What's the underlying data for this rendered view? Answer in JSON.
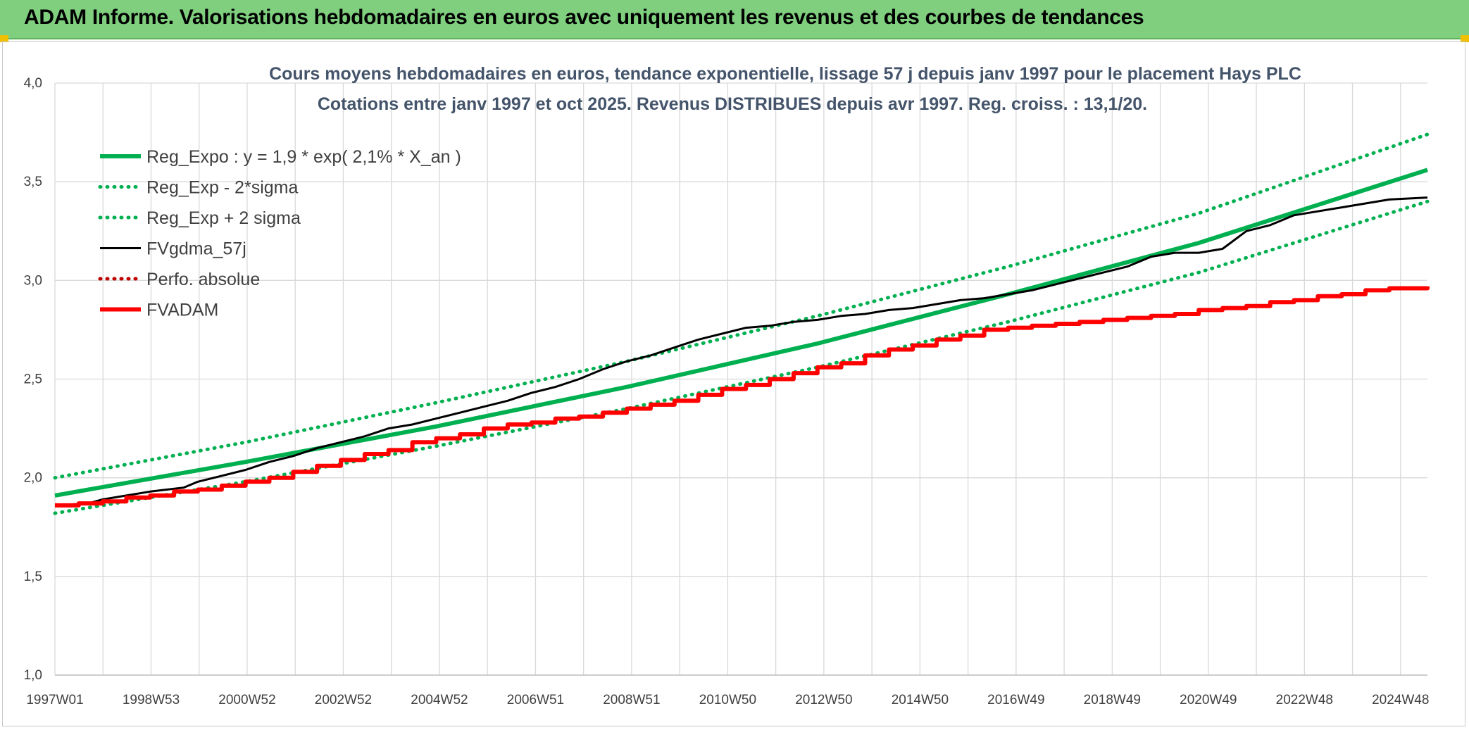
{
  "banner": {
    "title": "ADAM Informe. Valorisations hebdomadaires en euros avec uniquement les revenus et des courbes de tendances"
  },
  "colors": {
    "banner": "#7fcf7f",
    "reg": "#00b050",
    "fvgdma": "#000000",
    "fvadam": "#ff0000",
    "perfo": "#c00000"
  },
  "chart_data": {
    "type": "line",
    "title": "Cours moyens hebdomadaires en euros, tendance exponentielle, lissage 57 j depuis janv 1997 pour le placement Hays PLC",
    "subtitle": "Cotations entre janv 1997 et oct 2025. Revenus DISTRIBUES depuis avr 1997. Reg. croiss. : 13,1/20.",
    "ylim": [
      1.0,
      4.0
    ],
    "xlim": [
      1997.0,
      2025.8
    ],
    "y_ticks": [
      "1,0",
      "1,5",
      "2,0",
      "2,5",
      "3,0",
      "3,5",
      "4,0"
    ],
    "x_tick_labels": [
      "1997W01",
      "1998W53",
      "2000W52",
      "2002W52",
      "2004W52",
      "2006W51",
      "2008W51",
      "2010W50",
      "2012W50",
      "2014W50",
      "2016W49",
      "2018W49",
      "2020W49",
      "2022W48",
      "2024W48"
    ],
    "grid": true,
    "legend_position": "top-left",
    "series": [
      {
        "name": "Reg_Expo : y = 1,9 * exp( 2,1% *  X_an )",
        "style": "solid-thick",
        "color": "#00b050",
        "x": [
          1997.0,
          2001.0,
          2005.0,
          2009.0,
          2013.0,
          2017.0,
          2021.0,
          2025.8
        ],
        "y": [
          1.91,
          2.08,
          2.26,
          2.46,
          2.68,
          2.93,
          3.19,
          3.56
        ]
      },
      {
        "name": "Reg_Exp - 2*sigma",
        "style": "dotted",
        "color": "#00b050",
        "x": [
          1997.0,
          2001.0,
          2005.0,
          2009.0,
          2013.0,
          2017.0,
          2021.0,
          2025.8
        ],
        "y": [
          1.82,
          1.98,
          2.16,
          2.35,
          2.56,
          2.79,
          3.04,
          3.4
        ]
      },
      {
        "name": "Reg_Exp + 2 sigma",
        "style": "dotted",
        "color": "#00b050",
        "x": [
          1997.0,
          2001.0,
          2005.0,
          2009.0,
          2013.0,
          2017.0,
          2021.0,
          2025.8
        ],
        "y": [
          2.0,
          2.18,
          2.38,
          2.59,
          2.82,
          3.07,
          3.34,
          3.74
        ]
      },
      {
        "name": "FVgdma_57j",
        "style": "solid-thin",
        "color": "#000000",
        "x": [
          1997.0,
          1997.7,
          1998.0,
          1998.5,
          1999.0,
          1999.7,
          2000.0,
          2000.5,
          2001.0,
          2001.5,
          2002.0,
          2002.5,
          2003.0,
          2003.5,
          2004.0,
          2004.5,
          2005.0,
          2005.5,
          2006.0,
          2006.5,
          2007.0,
          2007.5,
          2008.0,
          2008.5,
          2009.0,
          2009.5,
          2010.0,
          2010.5,
          2011.0,
          2011.5,
          2012.0,
          2012.5,
          2013.0,
          2013.5,
          2014.0,
          2014.5,
          2015.0,
          2015.5,
          2016.0,
          2016.5,
          2017.0,
          2017.5,
          2018.0,
          2018.5,
          2019.0,
          2019.5,
          2020.0,
          2020.5,
          2021.0,
          2021.5,
          2022.0,
          2022.5,
          2023.0,
          2023.5,
          2024.0,
          2024.5,
          2025.0,
          2025.8
        ],
        "y": [
          1.86,
          1.87,
          1.89,
          1.91,
          1.93,
          1.95,
          1.98,
          2.01,
          2.04,
          2.08,
          2.11,
          2.15,
          2.18,
          2.21,
          2.25,
          2.27,
          2.3,
          2.33,
          2.36,
          2.39,
          2.43,
          2.46,
          2.5,
          2.55,
          2.59,
          2.62,
          2.66,
          2.7,
          2.73,
          2.76,
          2.77,
          2.79,
          2.8,
          2.82,
          2.83,
          2.85,
          2.86,
          2.88,
          2.9,
          2.91,
          2.93,
          2.95,
          2.98,
          3.01,
          3.04,
          3.07,
          3.12,
          3.14,
          3.14,
          3.16,
          3.25,
          3.28,
          3.33,
          3.35,
          3.37,
          3.39,
          3.41,
          3.42
        ]
      },
      {
        "name": "Perfo. absolue",
        "style": "dotted",
        "color": "#c00000",
        "x": [],
        "y": []
      },
      {
        "name": "FVADAM",
        "style": "step-thick",
        "color": "#ff0000",
        "x": [
          1997.0,
          1997.5,
          1998.0,
          1998.5,
          1999.0,
          1999.5,
          2000.0,
          2000.5,
          2001.0,
          2001.5,
          2002.0,
          2002.5,
          2003.0,
          2003.5,
          2004.0,
          2004.5,
          2005.0,
          2005.5,
          2006.0,
          2006.5,
          2007.0,
          2007.5,
          2008.0,
          2008.5,
          2009.0,
          2009.5,
          2010.0,
          2010.5,
          2011.0,
          2011.5,
          2012.0,
          2012.5,
          2013.0,
          2013.5,
          2014.0,
          2014.5,
          2015.0,
          2015.5,
          2016.0,
          2016.5,
          2017.0,
          2017.5,
          2018.0,
          2018.5,
          2019.0,
          2019.5,
          2020.0,
          2020.5,
          2021.0,
          2021.5,
          2022.0,
          2022.5,
          2023.0,
          2023.5,
          2024.0,
          2024.5,
          2025.0,
          2025.8
        ],
        "y": [
          1.86,
          1.87,
          1.88,
          1.9,
          1.91,
          1.93,
          1.94,
          1.96,
          1.98,
          2.0,
          2.03,
          2.06,
          2.09,
          2.12,
          2.14,
          2.18,
          2.2,
          2.22,
          2.25,
          2.27,
          2.28,
          2.3,
          2.31,
          2.33,
          2.35,
          2.37,
          2.39,
          2.42,
          2.45,
          2.47,
          2.5,
          2.53,
          2.56,
          2.58,
          2.62,
          2.65,
          2.67,
          2.7,
          2.72,
          2.75,
          2.76,
          2.77,
          2.78,
          2.79,
          2.8,
          2.81,
          2.82,
          2.83,
          2.85,
          2.86,
          2.87,
          2.89,
          2.9,
          2.92,
          2.93,
          2.95,
          2.96,
          2.97
        ]
      }
    ]
  }
}
